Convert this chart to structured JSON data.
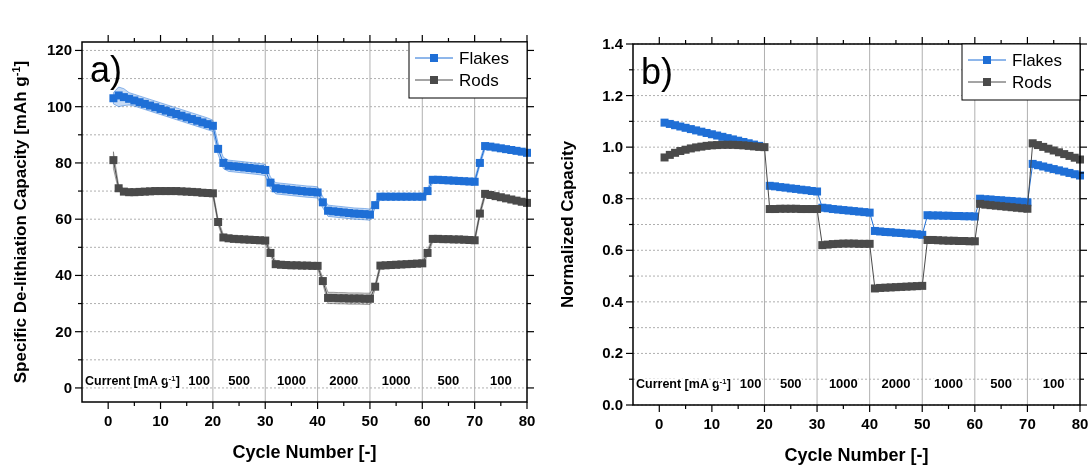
{
  "chart_data": [
    {
      "type": "line",
      "xlabel": "Cycle Number [-]",
      "ylabel": "Specific De-lithiation Capacity [mAh g$^{-1}$]",
      "annotations": [
        "a)",
        "Current [mA g$^{-1}$]",
        "100",
        "500",
        "1000",
        "2000",
        "1000",
        "500",
        "100"
      ],
      "x": [
        1,
        2,
        3,
        4,
        5,
        6,
        7,
        8,
        9,
        10,
        11,
        12,
        13,
        14,
        15,
        16,
        17,
        18,
        19,
        20,
        21,
        22,
        23,
        24,
        25,
        26,
        27,
        28,
        29,
        30,
        31,
        32,
        33,
        34,
        35,
        36,
        37,
        38,
        39,
        40,
        41,
        42,
        43,
        44,
        45,
        46,
        47,
        48,
        49,
        50,
        51,
        52,
        53,
        54,
        55,
        56,
        57,
        58,
        59,
        60,
        61,
        62,
        63,
        64,
        65,
        66,
        67,
        68,
        69,
        70,
        71,
        72,
        73,
        74,
        75,
        76,
        77,
        78,
        79,
        80
      ],
      "series": [
        {
          "name": "Flakes",
          "color": "#1f6fd6",
          "values": [
            103,
            104,
            103.4,
            102.8,
            102.2,
            101.6,
            101,
            100.4,
            99.8,
            99.2,
            98.6,
            98,
            97.4,
            96.8,
            96.2,
            95.6,
            95,
            94.4,
            93.8,
            93.2,
            85,
            80,
            79,
            78.8,
            78.6,
            78.4,
            78.2,
            78,
            77.8,
            77.5,
            73,
            71,
            70.8,
            70.6,
            70.4,
            70.2,
            70,
            69.8,
            69.7,
            69.5,
            66,
            63,
            62.8,
            62.6,
            62.4,
            62.2,
            62,
            61.9,
            61.8,
            61.6,
            65,
            68,
            68,
            68,
            68,
            68,
            68,
            68,
            68,
            68,
            70,
            74,
            74,
            73.9,
            73.8,
            73.7,
            73.6,
            73.5,
            73.4,
            73.3,
            80,
            86,
            85.8,
            85.5,
            85.2,
            84.9,
            84.6,
            84.3,
            84,
            83.6
          ],
          "upper": [
            105,
            107,
            106.4,
            105,
            104.4,
            103.8,
            103.2,
            102.6,
            102,
            101.4,
            100.8,
            100.2,
            99.6,
            99,
            98.4,
            97.8,
            97.2,
            96.6,
            96,
            95.2,
            87,
            82,
            81,
            80.8,
            80.6,
            80.4,
            80.2,
            80,
            79.8,
            79.5,
            75,
            73,
            72.8,
            72.6,
            72.4,
            72.2,
            72,
            71.8,
            71.7,
            71.5,
            68,
            65,
            64.8,
            64.6,
            64.4,
            64.2,
            64,
            63.9,
            63.8,
            63.6,
            66,
            69,
            69,
            69,
            69,
            69,
            69,
            69,
            69,
            69,
            71,
            75,
            75,
            74.9,
            74.8,
            74.7,
            74.6,
            74.5,
            74.4,
            74.3,
            81,
            87,
            86.8,
            86.5,
            86.2,
            85.9,
            85.6,
            85.3,
            85,
            84.6
          ],
          "lower": [
            101,
            100,
            100.4,
            100.6,
            100.2,
            99.6,
            99,
            98.4,
            97.8,
            97.2,
            96.6,
            96,
            95.4,
            94.8,
            94.2,
            93.6,
            93,
            92.4,
            91.8,
            91.2,
            83,
            78,
            77,
            76.8,
            76.6,
            76.4,
            76.2,
            76,
            75.8,
            75.5,
            71,
            69,
            68.8,
            68.6,
            68.4,
            68.2,
            68,
            67.8,
            67.7,
            67.5,
            64,
            61,
            60.8,
            60.6,
            60.4,
            60.2,
            60,
            59.9,
            59.8,
            59.6,
            64,
            67,
            67,
            67,
            67,
            67,
            67,
            67,
            67,
            67,
            69,
            73,
            73,
            72.9,
            72.8,
            72.7,
            72.6,
            72.5,
            72.4,
            72.3,
            79,
            85,
            84.8,
            84.5,
            84.2,
            83.9,
            83.6,
            83.3,
            83,
            82.6
          ]
        },
        {
          "name": "Rods",
          "color": "#4a4a4a",
          "values": [
            81,
            71,
            69.8,
            69.6,
            69.6,
            69.7,
            69.8,
            69.9,
            70,
            70,
            70,
            70,
            70,
            69.9,
            69.8,
            69.7,
            69.6,
            69.4,
            69.3,
            69.2,
            59,
            53.5,
            53.2,
            53,
            52.9,
            52.8,
            52.7,
            52.6,
            52.5,
            52.4,
            48,
            44,
            43.8,
            43.7,
            43.6,
            43.6,
            43.5,
            43.5,
            43.4,
            43.4,
            38,
            32,
            32,
            31.9,
            31.9,
            31.8,
            31.8,
            31.8,
            31.7,
            31.7,
            36,
            43.5,
            43.6,
            43.7,
            43.8,
            43.9,
            44,
            44.1,
            44.2,
            44.3,
            48,
            53,
            53,
            52.9,
            52.9,
            52.8,
            52.8,
            52.7,
            52.6,
            52.5,
            62,
            69,
            68.6,
            68.2,
            67.8,
            67.4,
            67,
            66.6,
            66.2,
            65.8
          ],
          "upper": [
            84,
            72,
            70.8,
            70.6,
            70.6,
            70.7,
            70.8,
            70.9,
            71,
            71,
            71,
            71,
            71,
            70.9,
            70.8,
            70.7,
            70.6,
            70.4,
            70.3,
            70.2,
            60,
            54.5,
            54.2,
            54,
            53.9,
            53.8,
            53.7,
            53.6,
            53.5,
            53.4,
            49,
            45,
            44.8,
            44.7,
            44.6,
            44.6,
            44.5,
            44.5,
            44.4,
            44.4,
            39,
            34,
            34,
            33.9,
            33.9,
            33.8,
            33.8,
            33.8,
            33.7,
            33.7,
            37,
            44.5,
            44.6,
            44.7,
            44.8,
            44.9,
            45,
            45.1,
            45.2,
            45.3,
            49,
            54,
            54,
            53.9,
            53.9,
            53.8,
            53.8,
            53.7,
            53.6,
            53.5,
            63,
            70,
            69.6,
            69.2,
            68.8,
            68.4,
            68,
            67.6,
            67.2,
            66.8
          ],
          "lower": [
            78,
            70,
            68.8,
            68.6,
            68.6,
            68.7,
            68.8,
            68.9,
            69,
            69,
            69,
            69,
            69,
            68.9,
            68.8,
            68.7,
            68.6,
            68.4,
            68.3,
            68.2,
            58,
            52.5,
            52.2,
            52,
            51.9,
            51.8,
            51.7,
            51.6,
            51.5,
            51.4,
            47,
            43,
            42.8,
            42.7,
            42.6,
            42.6,
            42.5,
            42.5,
            42.4,
            42.4,
            37,
            30,
            30,
            29.9,
            29.9,
            29.8,
            29.8,
            29.8,
            29.7,
            29.7,
            35,
            42.5,
            42.6,
            42.7,
            42.8,
            42.9,
            43,
            43.1,
            43.2,
            43.3,
            47,
            52,
            52,
            51.9,
            51.9,
            51.8,
            51.8,
            51.7,
            51.6,
            51.5,
            61,
            68,
            67.6,
            67.2,
            66.8,
            66.4,
            66,
            65.6,
            65.2,
            64.8
          ]
        }
      ],
      "xlim": [
        -5,
        80
      ],
      "xticks": [
        0,
        {
          "value": 5,
          "label": null
        },
        10,
        {
          "value": 15,
          "label": null
        },
        20,
        {
          "value": 25,
          "label": null
        },
        30,
        {
          "value": 35,
          "label": null
        },
        40,
        {
          "value": 45,
          "label": null
        },
        50,
        {
          "value": 55,
          "label": null
        },
        60,
        {
          "value": 65,
          "label": null
        },
        70,
        {
          "value": 75,
          "label": null
        },
        80
      ],
      "ylim": [
        -5,
        123
      ],
      "yticks": [
        0,
        {
          "value": 10,
          "label": null
        },
        20,
        {
          "value": 30,
          "label": null
        },
        40,
        {
          "value": 50,
          "label": null
        },
        60,
        {
          "value": 70,
          "label": null
        },
        80,
        {
          "value": 90,
          "label": null
        },
        100,
        {
          "value": 110,
          "label": null
        },
        120
      ],
      "grid": "y",
      "legend": "top right",
      "marker": "square",
      "line_style": "solid",
      "ref_lines": [
        {
          "axis": "x",
          "value": 20
        },
        {
          "axis": "x",
          "value": 30
        },
        {
          "axis": "x",
          "value": 40
        },
        {
          "axis": "x",
          "value": 50
        },
        {
          "axis": "x",
          "value": 60
        },
        {
          "axis": "x",
          "value": 70
        }
      ]
    },
    {
      "type": "line",
      "xlabel": "Cycle Number [-]",
      "ylabel": "Normalized Capacity",
      "annotations": [
        "b)",
        "Current [mA g$^{-1}$]",
        "100",
        "500",
        "1000",
        "2000",
        "1000",
        "500",
        "100"
      ],
      "x": [
        1,
        2,
        3,
        4,
        5,
        6,
        7,
        8,
        9,
        10,
        11,
        12,
        13,
        14,
        15,
        16,
        17,
        18,
        19,
        20,
        21,
        22,
        23,
        24,
        25,
        26,
        27,
        28,
        29,
        30,
        31,
        32,
        33,
        34,
        35,
        36,
        37,
        38,
        39,
        40,
        41,
        42,
        43,
        44,
        45,
        46,
        47,
        48,
        49,
        50,
        51,
        52,
        53,
        54,
        55,
        56,
        57,
        58,
        59,
        60,
        61,
        62,
        63,
        64,
        65,
        66,
        67,
        68,
        69,
        70,
        71,
        72,
        73,
        74,
        75,
        76,
        77,
        78,
        79,
        80
      ],
      "series": [
        {
          "name": "Flakes",
          "color": "#1f6fd6",
          "values": [
            1.095,
            1.09,
            1.085,
            1.08,
            1.075,
            1.07,
            1.065,
            1.06,
            1.055,
            1.05,
            1.045,
            1.04,
            1.035,
            1.03,
            1.025,
            1.02,
            1.015,
            1.01,
            1.005,
            null,
            0.85,
            0.848,
            0.845,
            0.843,
            0.84,
            0.838,
            0.835,
            0.833,
            0.83,
            0.828,
            0.765,
            0.763,
            0.76,
            0.758,
            0.756,
            0.754,
            0.752,
            0.75,
            0.748,
            0.746,
            0.675,
            0.673,
            0.671,
            0.67,
            0.668,
            0.667,
            0.665,
            0.664,
            0.662,
            0.66,
            0.736,
            0.735,
            0.735,
            0.734,
            0.734,
            0.733,
            0.733,
            0.732,
            0.732,
            0.731,
            0.8,
            0.798,
            0.797,
            0.795,
            0.794,
            0.792,
            0.791,
            0.789,
            0.788,
            0.786,
            0.935,
            0.93,
            0.925,
            0.92,
            0.915,
            0.91,
            0.905,
            0.9,
            0.895,
            0.89
          ]
        },
        {
          "name": "Rods",
          "color": "#4a4a4a",
          "values": [
            0.96,
            0.97,
            0.978,
            0.985,
            0.99,
            0.995,
            0.999,
            1.002,
            1.005,
            1.007,
            1.008,
            1.009,
            1.009,
            1.009,
            1.008,
            1.007,
            1.005,
            1.003,
            1.001,
            1.0,
            0.76,
            0.76,
            0.761,
            0.761,
            0.761,
            0.761,
            0.76,
            0.76,
            0.76,
            0.76,
            0.62,
            0.622,
            0.624,
            0.625,
            0.626,
            0.626,
            0.626,
            0.625,
            0.625,
            0.625,
            0.452,
            0.454,
            0.455,
            0.456,
            0.457,
            0.458,
            0.459,
            0.46,
            0.461,
            0.462,
            0.64,
            0.64,
            0.639,
            0.638,
            0.637,
            0.637,
            0.636,
            0.636,
            0.635,
            0.635,
            0.78,
            0.777,
            0.775,
            0.773,
            0.771,
            0.769,
            0.767,
            0.765,
            0.763,
            0.761,
            1.015,
            1.008,
            1.001,
            0.994,
            0.987,
            0.98,
            0.973,
            0.966,
            0.959,
            0.952
          ]
        }
      ],
      "xlim": [
        -5,
        80
      ],
      "xticks": [
        0,
        {
          "value": 5,
          "label": null
        },
        10,
        {
          "value": 15,
          "label": null
        },
        20,
        {
          "value": 25,
          "label": null
        },
        30,
        {
          "value": 35,
          "label": null
        },
        40,
        {
          "value": 45,
          "label": null
        },
        50,
        {
          "value": 55,
          "label": null
        },
        60,
        {
          "value": 65,
          "label": null
        },
        70,
        {
          "value": 75,
          "label": null
        },
        80
      ],
      "ylim": [
        0,
        1.4
      ],
      "yticks": [
        {
          "value": 0,
          "label": "0.0"
        },
        {
          "value": 0.1,
          "label": null
        },
        {
          "value": 0.2,
          "label": "0.2"
        },
        {
          "value": 0.3,
          "label": null
        },
        {
          "value": 0.4,
          "label": "0.4"
        },
        {
          "value": 0.5,
          "label": null
        },
        {
          "value": 0.6,
          "label": "0.6"
        },
        {
          "value": 0.7,
          "label": null
        },
        {
          "value": 0.8,
          "label": "0.8"
        },
        {
          "value": 0.9,
          "label": null
        },
        {
          "value": 1.0,
          "label": "1.0"
        },
        {
          "value": 1.1,
          "label": null
        },
        {
          "value": 1.2,
          "label": "1.2"
        },
        {
          "value": 1.3,
          "label": null
        },
        {
          "value": 1.4,
          "label": "1.4"
        }
      ],
      "grid": "y",
      "legend": "top right",
      "marker": "square",
      "line_style": "solid",
      "ref_lines": [
        {
          "axis": "x",
          "value": 20
        },
        {
          "axis": "x",
          "value": 30
        },
        {
          "axis": "x",
          "value": 40
        },
        {
          "axis": "x",
          "value": 50
        },
        {
          "axis": "x",
          "value": 60
        },
        {
          "axis": "x",
          "value": 70
        }
      ]
    }
  ]
}
